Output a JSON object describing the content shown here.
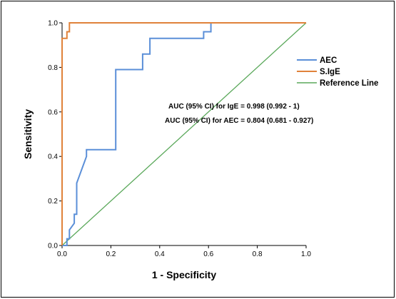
{
  "chart_data": {
    "type": "line",
    "title": "",
    "xlabel": "1 - Specificity",
    "ylabel": "Sensitivity",
    "xlim": [
      0,
      1
    ],
    "ylim": [
      0,
      1
    ],
    "xticks": [
      "0.0",
      "0.2",
      "0.4",
      "0.6",
      "0.8",
      "1.0"
    ],
    "yticks": [
      "0.0",
      "0.2",
      "0.4",
      "0.6",
      "0.8",
      "1.0"
    ],
    "grid": false,
    "legend_position": "top-right",
    "series": [
      {
        "name": "AEC",
        "color": "#5b8fd8",
        "x": [
          0,
          0.02,
          0.02,
          0.03,
          0.03,
          0.05,
          0.05,
          0.06,
          0.06,
          0.1,
          0.1,
          0.22,
          0.22,
          0.33,
          0.33,
          0.36,
          0.36,
          0.58,
          0.58,
          0.61,
          0.61,
          1.0
        ],
        "y": [
          0,
          0,
          0.03,
          0.03,
          0.07,
          0.1,
          0.14,
          0.14,
          0.28,
          0.4,
          0.43,
          0.43,
          0.79,
          0.79,
          0.86,
          0.86,
          0.93,
          0.93,
          0.96,
          0.96,
          1.0,
          1.0
        ]
      },
      {
        "name": "S.IgE",
        "color": "#e0823a",
        "x": [
          0,
          0,
          0.02,
          0.02,
          0.03,
          0.03,
          1.0
        ],
        "y": [
          0,
          0.93,
          0.93,
          0.96,
          0.96,
          1.0,
          1.0
        ]
      },
      {
        "name": "Reference Line",
        "color": "#5aa85a",
        "x": [
          0,
          1
        ],
        "y": [
          0,
          1
        ]
      }
    ],
    "annotations": [
      "AUC (95% CI) for IgE = 0.998 (0.992 - 1)",
      "AUC (95% CI) for AEC = 0.804 (0.681 - 0.927)"
    ]
  }
}
